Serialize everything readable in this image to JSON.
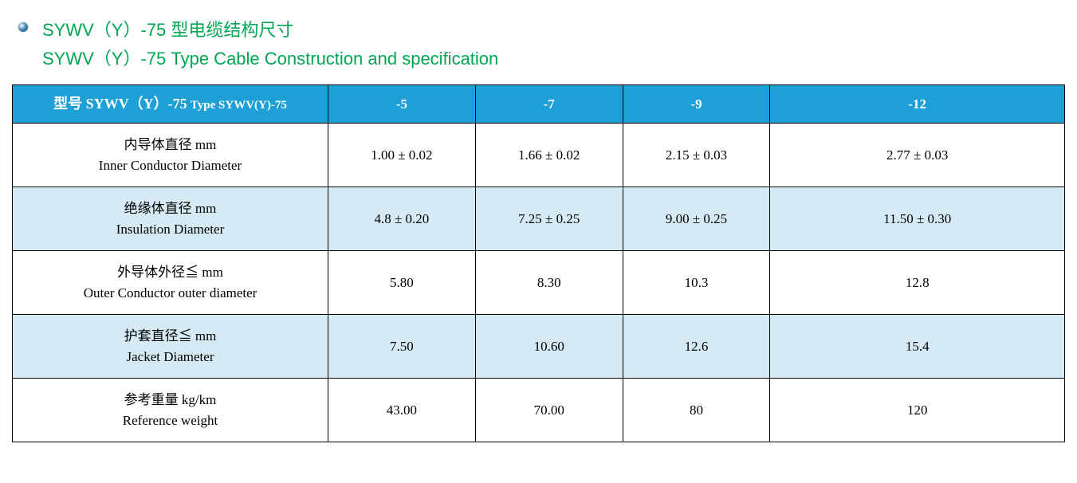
{
  "colors": {
    "title": "#00a651",
    "header_bg": "#1e9fd6",
    "header_fg": "#ffffff",
    "row_alt_bg": "#d5eaf5",
    "row_bg": "#ffffff",
    "border": "#000000"
  },
  "title": {
    "line1": "SYWV（Y）-75 型电缆结构尺寸",
    "line2": "SYWV（Y）-75 Type Cable Construction and specification"
  },
  "table": {
    "header": {
      "label_cn": "型号 SYWV（Y）-75",
      "label_en": "Type SYWV(Y)-75",
      "cols": [
        "-5",
        "-7",
        "-9",
        "-12"
      ]
    },
    "rows": [
      {
        "label_cn": "内导体直径 mm",
        "label_en": "Inner Conductor Diameter",
        "values": [
          "1.00 ± 0.02",
          "1.66 ± 0.02",
          "2.15 ± 0.03",
          "2.77 ± 0.03"
        ],
        "alt": false
      },
      {
        "label_cn": "绝缘体直径 mm",
        "label_en": "Insulation Diameter",
        "values": [
          "4.8 ± 0.20",
          "7.25 ± 0.25",
          "9.00 ± 0.25",
          "11.50 ± 0.30"
        ],
        "alt": true
      },
      {
        "label_cn": "外导体外径≦ mm",
        "label_en": "Outer Conductor outer diameter",
        "values": [
          "5.80",
          "8.30",
          "10.3",
          "12.8"
        ],
        "alt": false
      },
      {
        "label_cn": "护套直径≦ mm",
        "label_en": "Jacket Diameter",
        "values": [
          "7.50",
          "10.60",
          "12.6",
          "15.4"
        ],
        "alt": true
      },
      {
        "label_cn": "参考重量 kg/km",
        "label_en": "Reference weight",
        "values": [
          "43.00",
          "70.00",
          "80",
          "120"
        ],
        "alt": false
      }
    ]
  }
}
